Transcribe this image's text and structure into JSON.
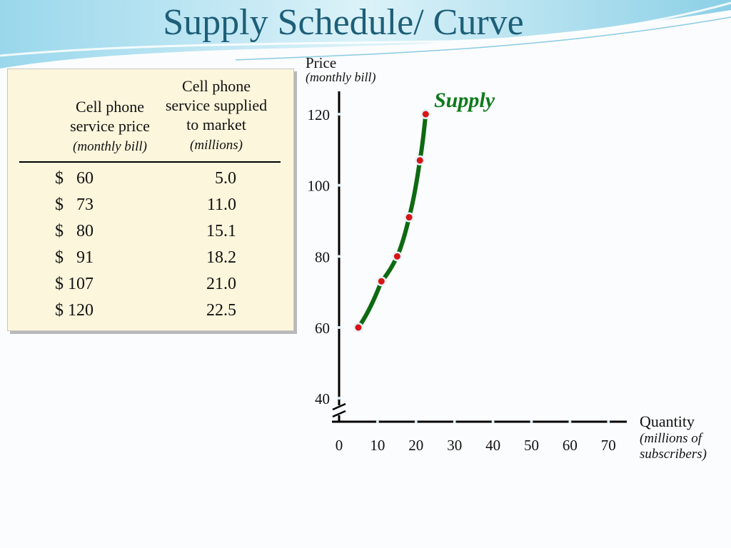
{
  "slide": {
    "title": "Supply Schedule/ Curve"
  },
  "table": {
    "header_price": [
      "Cell phone",
      "service price"
    ],
    "header_price_unit": "(monthly bill)",
    "header_qty": [
      "Cell phone",
      "service supplied",
      "to market"
    ],
    "header_qty_unit": "(millions)",
    "rows": [
      {
        "price": "$   60",
        "qty": "5.0"
      },
      {
        "price": "$   73",
        "qty": "11.0"
      },
      {
        "price": "$   80",
        "qty": "15.1"
      },
      {
        "price": "$   91",
        "qty": "18.2"
      },
      {
        "price": "$ 107",
        "qty": "21.0"
      },
      {
        "price": "$ 120",
        "qty": "22.5"
      }
    ]
  },
  "colors": {
    "title": "#1d5f78",
    "curve": "#0e6a12",
    "points": "#d91414",
    "supply_label": "#0e7a1c",
    "table_bg": "#fcf6dc"
  },
  "chart_data": {
    "type": "line",
    "ylabel": "Price",
    "ylabel_unit": "(monthly bill)",
    "xlabel": "Quantity",
    "xlabel_unit": [
      "(millions of",
      "subscribers)"
    ],
    "series": [
      {
        "name": "Supply",
        "points": [
          {
            "x": 5.0,
            "y": 60
          },
          {
            "x": 11.0,
            "y": 73
          },
          {
            "x": 15.1,
            "y": 80
          },
          {
            "x": 18.2,
            "y": 91
          },
          {
            "x": 21.0,
            "y": 107
          },
          {
            "x": 22.5,
            "y": 120
          }
        ]
      }
    ],
    "x_ticks": [
      0,
      10,
      20,
      30,
      40,
      50,
      60,
      70
    ],
    "y_ticks": [
      40,
      60,
      80,
      100,
      120
    ],
    "xlim": [
      0,
      70
    ],
    "ylim": [
      40,
      120
    ],
    "y_axis_break": true,
    "grid": false
  }
}
